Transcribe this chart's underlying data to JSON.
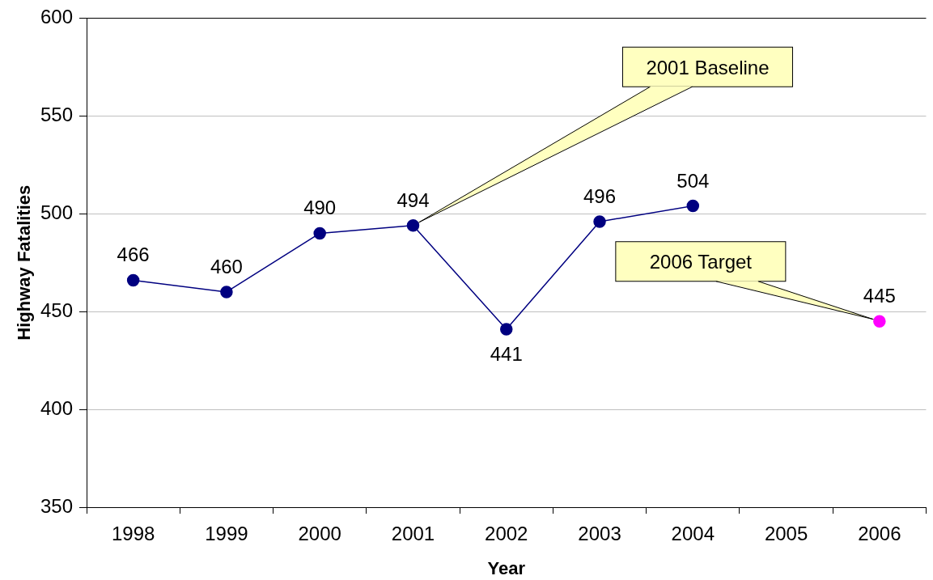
{
  "chart_data": {
    "type": "line",
    "xlabel": "Year",
    "ylabel": "Highway Fatalities",
    "categories": [
      "1998",
      "1999",
      "2000",
      "2001",
      "2002",
      "2003",
      "2004",
      "2005",
      "2006"
    ],
    "series": [
      {
        "color": "#000080",
        "values": [
          466,
          460,
          490,
          494,
          441,
          496,
          504,
          null,
          null
        ]
      },
      {
        "color": "#ff00ff",
        "values": [
          null,
          null,
          null,
          null,
          null,
          null,
          null,
          null,
          445
        ]
      }
    ],
    "ylim": [
      350,
      600
    ],
    "yticks": [
      350,
      400,
      450,
      500,
      550,
      600
    ],
    "grid": "y",
    "marker": "circle",
    "line_style": "solid",
    "data_labels": true,
    "legend": false,
    "annotations": [
      {
        "text": "2001 Baseline",
        "x": "2001",
        "y": 494
      },
      {
        "text": "2006 Target",
        "x": "2006",
        "y": 445
      }
    ]
  }
}
